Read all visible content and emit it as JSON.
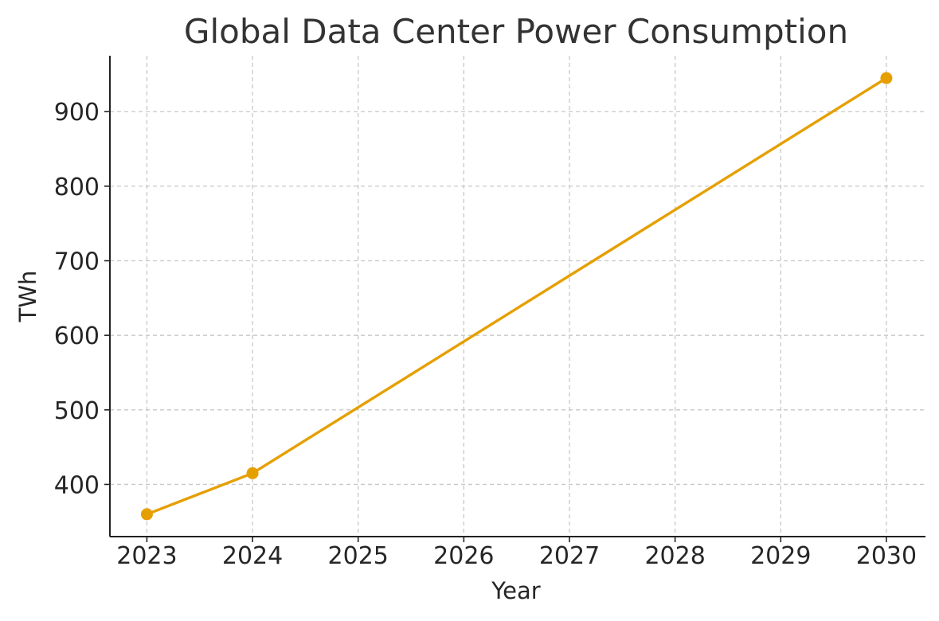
{
  "chart_data": {
    "type": "line",
    "title": "Global Data Center Power Consumption",
    "xlabel": "Year",
    "ylabel": "TWh",
    "x_ticks": [
      2023,
      2024,
      2025,
      2026,
      2027,
      2028,
      2029,
      2030
    ],
    "y_ticks": [
      400,
      500,
      600,
      700,
      800,
      900
    ],
    "xlim": [
      2022.65,
      2030.37
    ],
    "ylim": [
      330,
      975
    ],
    "grid": true,
    "series": [
      {
        "name": "TWh",
        "color": "#E69F00",
        "marker": "circle",
        "points": [
          {
            "x": 2023,
            "y": 360
          },
          {
            "x": 2024,
            "y": 415
          },
          {
            "x": 2030,
            "y": 945
          }
        ]
      }
    ]
  }
}
